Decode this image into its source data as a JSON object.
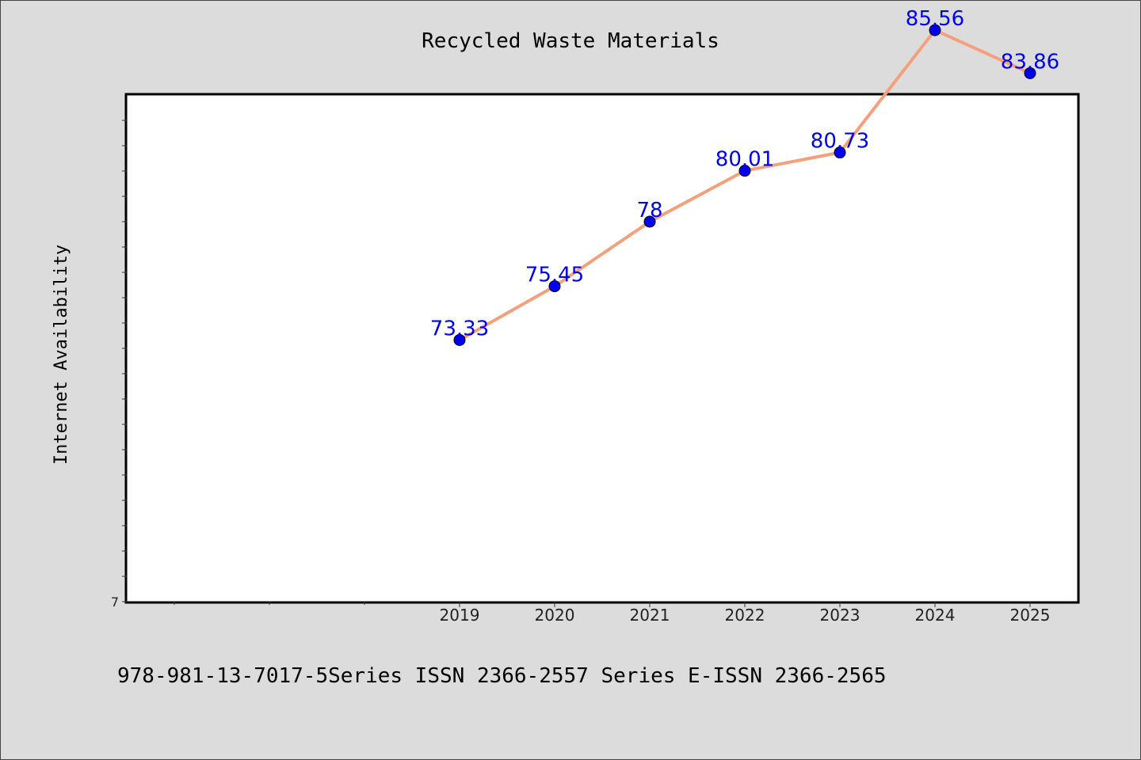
{
  "chart_data": {
    "type": "line",
    "title": "Recycled Waste Materials",
    "xlabel": "",
    "ylabel": "Internet Availability",
    "categories": [
      "2019",
      "2020",
      "2021",
      "2022",
      "2023",
      "2024",
      "2025"
    ],
    "series": [
      {
        "values": [
          73.33,
          75.45,
          78,
          80.01,
          80.73,
          85.56,
          83.86
        ]
      }
    ],
    "data_labels": [
      "73.33",
      "75.45",
      "78",
      "80.01",
      "80.73",
      "85.56",
      "83.86"
    ],
    "y_tick_label": "7",
    "xlim": [
      2015.5,
      2025.5
    ],
    "ylim": [
      63.0,
      83.0
    ],
    "grid": false,
    "colors": {
      "line": "#f4a07c",
      "marker": "#0000ee",
      "label": "#0000ee",
      "plot_bg": "#ffffff",
      "page_bg": "#dcdcdc"
    }
  },
  "footer": {
    "text": "978-981-13-7017-5Series ISSN 2366-2557 Series E-ISSN 2366-2565"
  }
}
